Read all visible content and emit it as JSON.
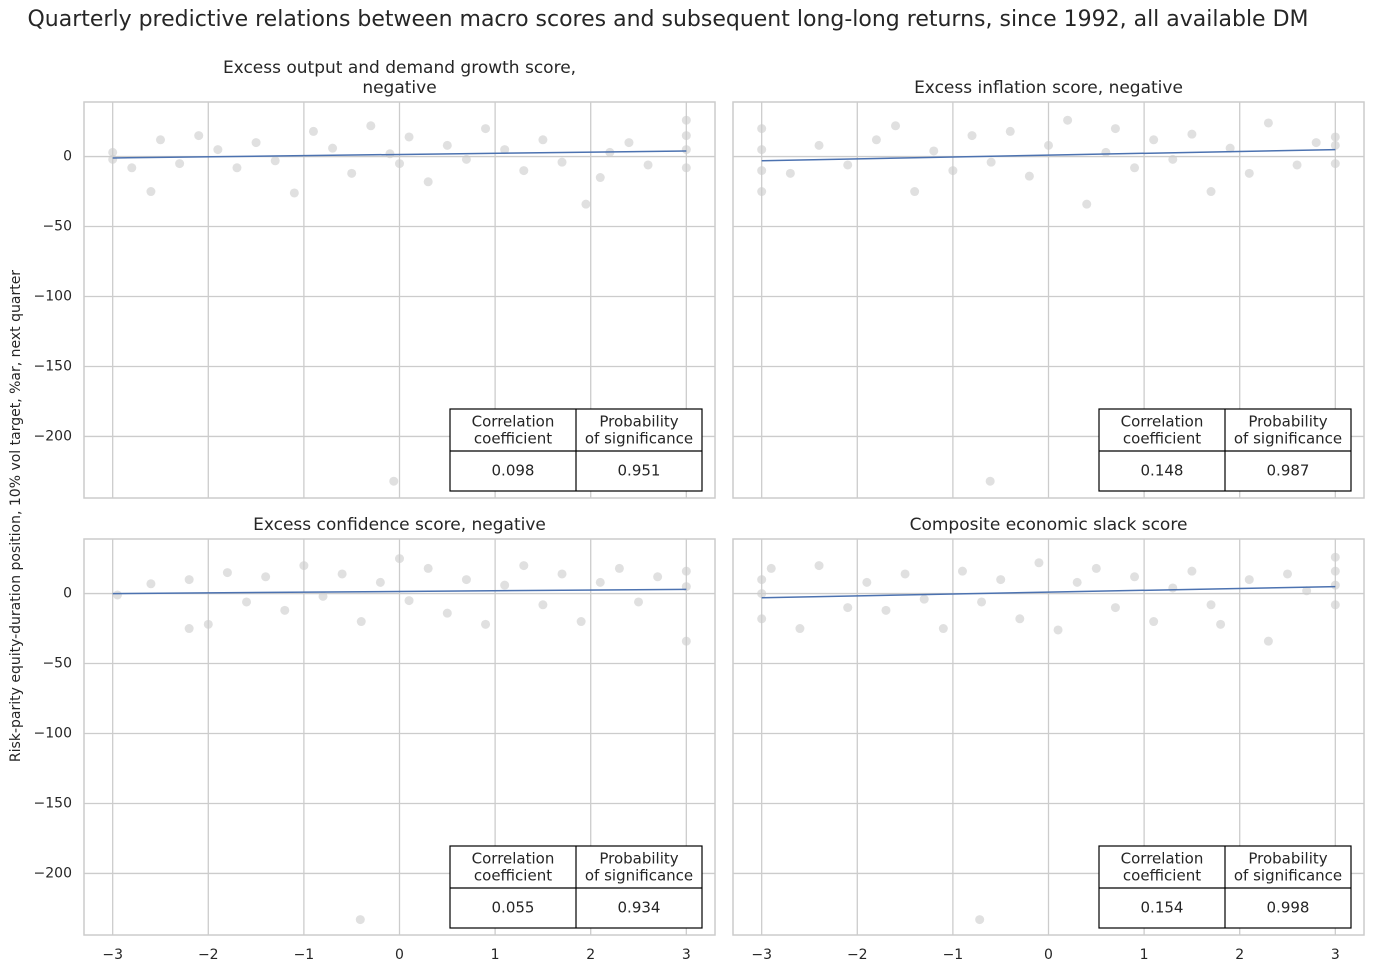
{
  "title": "Quarterly predictive relations between macro scores and subsequent long-long returns, since 1992, all available DM",
  "chart_data": [
    {
      "type": "scatter",
      "title": [
        "Excess output and demand growth score,",
        "negative"
      ],
      "ylabel": "Risk-parity equity-duration position, 10% vol target, %ar, next quarter",
      "x": [
        -3,
        -3,
        -2.8,
        -2.6,
        -2.5,
        -2.3,
        -2.1,
        -1.9,
        -1.7,
        -1.5,
        -1.3,
        -1.1,
        -0.9,
        -0.7,
        -0.5,
        -0.3,
        -0.1,
        0,
        0.1,
        0.3,
        0.5,
        0.7,
        0.9,
        1.1,
        1.3,
        1.5,
        1.7,
        1.95,
        2.1,
        2.2,
        2.4,
        2.6,
        3,
        3,
        3,
        3,
        -0.06
      ],
      "values": [
        -2,
        3,
        -8,
        -25,
        12,
        -5,
        15,
        5,
        -8,
        10,
        -3,
        -26,
        18,
        6,
        -12,
        22,
        2,
        -5,
        14,
        -18,
        8,
        -2,
        20,
        5,
        -10,
        12,
        -4,
        -34,
        -15,
        3,
        10,
        -6,
        -8,
        5,
        15,
        26,
        -232
      ],
      "color": "#cccccc",
      "fit": {
        "x": [
          -3,
          3
        ],
        "values": [
          -1,
          4
        ],
        "color": "#4c72b0"
      },
      "xlim": [
        -3.3,
        3.3
      ],
      "ylim": [
        -244,
        39
      ],
      "xticks": [
        -3,
        -2,
        -1,
        0,
        1,
        2,
        3
      ],
      "yticks": [
        {
          "value": -200,
          "label": "−200"
        },
        {
          "value": -150,
          "label": "−150"
        },
        {
          "value": -100,
          "label": "−100"
        },
        {
          "value": -50,
          "label": "−50"
        },
        0
      ],
      "table": {
        "header": [
          [
            "Correlation",
            "coefficient"
          ],
          [
            "Probability",
            "of significance"
          ]
        ],
        "row": [
          0.098,
          0.951
        ]
      }
    },
    {
      "type": "scatter",
      "title": [
        "Excess inflation score, negative"
      ],
      "x": [
        -3,
        -3,
        -3,
        -3,
        -2.7,
        -2.4,
        -2.1,
        -1.8,
        -1.6,
        -1.4,
        -1.2,
        -1,
        -0.8,
        -0.6,
        -0.4,
        -0.2,
        0,
        0.2,
        0.4,
        0.6,
        0.7,
        0.9,
        1.1,
        1.3,
        1.5,
        1.7,
        1.9,
        2.1,
        2.3,
        2.6,
        2.8,
        3,
        3,
        3,
        -0.61
      ],
      "values": [
        -25,
        -10,
        5,
        20,
        -12,
        8,
        -6,
        12,
        22,
        -25,
        4,
        -10,
        15,
        -4,
        18,
        -14,
        8,
        26,
        -34,
        3,
        20,
        -8,
        12,
        -2,
        16,
        -25,
        6,
        -12,
        24,
        -6,
        10,
        -5,
        8,
        14,
        -232
      ],
      "color": "#cccccc",
      "fit": {
        "x": [
          -3,
          3
        ],
        "values": [
          -3,
          5
        ],
        "color": "#4c72b0"
      },
      "xlim": [
        -3.3,
        3.3
      ],
      "ylim": [
        -244,
        39
      ],
      "xticks": [
        -3,
        -2,
        -1,
        0,
        1,
        2,
        3
      ],
      "yticks": [
        -200,
        -150,
        -100,
        -50,
        0
      ],
      "table": {
        "header": [
          [
            "Correlation",
            "coefficient"
          ],
          [
            "Probability",
            "of significance"
          ]
        ],
        "row": [
          0.148,
          0.987
        ]
      }
    },
    {
      "type": "scatter",
      "title": [
        "Excess confidence score, negative"
      ],
      "x": [
        -2.95,
        -2.6,
        -2.2,
        -2.2,
        -2,
        -1.8,
        -1.6,
        -1.4,
        -1.2,
        -1,
        -0.8,
        -0.6,
        -0.4,
        -0.2,
        0,
        0.1,
        0.3,
        0.5,
        0.7,
        0.9,
        1.1,
        1.3,
        1.5,
        1.7,
        1.9,
        2.1,
        2.3,
        2.5,
        2.7,
        3,
        3,
        3,
        -0.41
      ],
      "values": [
        -1,
        7,
        -25,
        10,
        -22,
        15,
        -6,
        12,
        -12,
        20,
        -2,
        14,
        -20,
        8,
        25,
        -5,
        18,
        -14,
        10,
        -22,
        6,
        20,
        -8,
        14,
        -20,
        8,
        18,
        -6,
        12,
        -34,
        5,
        16,
        -233
      ],
      "color": "#cccccc",
      "fit": {
        "x": [
          -3,
          3
        ],
        "values": [
          0,
          3
        ],
        "color": "#4c72b0"
      },
      "xlim": [
        -3.3,
        3.3
      ],
      "ylim": [
        -244,
        39
      ],
      "xticks": [
        {
          "value": -3,
          "label": "−3"
        },
        {
          "value": -2,
          "label": "−2"
        },
        {
          "value": -1,
          "label": "−1"
        },
        0,
        1,
        2,
        3
      ],
      "yticks": [
        {
          "value": -200,
          "label": "−200"
        },
        {
          "value": -150,
          "label": "−150"
        },
        {
          "value": -100,
          "label": "−100"
        },
        {
          "value": -50,
          "label": "−50"
        },
        0
      ],
      "table": {
        "header": [
          [
            "Correlation",
            "coefficient"
          ],
          [
            "Probability",
            "of significance"
          ]
        ],
        "row": [
          0.055,
          0.934
        ]
      }
    },
    {
      "type": "scatter",
      "title": [
        "Composite economic slack score"
      ],
      "x": [
        -3,
        -3,
        -3,
        -2.9,
        -2.6,
        -2.4,
        -2.1,
        -1.9,
        -1.7,
        -1.5,
        -1.3,
        -1.1,
        -0.9,
        -0.7,
        -0.5,
        -0.3,
        -0.1,
        0.1,
        0.3,
        0.5,
        0.7,
        0.9,
        1.1,
        1.3,
        1.5,
        1.7,
        1.8,
        2.1,
        2.3,
        2.5,
        2.7,
        3,
        3,
        3,
        3,
        -0.72
      ],
      "values": [
        -18,
        0,
        10,
        18,
        -25,
        20,
        -10,
        8,
        -12,
        14,
        -4,
        -25,
        16,
        -6,
        10,
        -18,
        22,
        -26,
        8,
        18,
        -10,
        12,
        -20,
        4,
        16,
        -8,
        -22,
        10,
        -34,
        14,
        2,
        -8,
        6,
        16,
        26,
        -233
      ],
      "color": "#cccccc",
      "fit": {
        "x": [
          -3,
          3
        ],
        "values": [
          -3,
          5
        ],
        "color": "#4c72b0"
      },
      "xlim": [
        -3.3,
        3.3
      ],
      "ylim": [
        -244,
        39
      ],
      "xticks": [
        {
          "value": -3,
          "label": "−3"
        },
        {
          "value": -2,
          "label": "−2"
        },
        {
          "value": -1,
          "label": "−1"
        },
        0,
        1,
        2,
        3
      ],
      "yticks": [
        -200,
        -150,
        -100,
        -50,
        0
      ],
      "table": {
        "header": [
          [
            "Correlation",
            "coefficient"
          ],
          [
            "Probability",
            "of significance"
          ]
        ],
        "row": [
          0.154,
          0.998
        ]
      }
    }
  ]
}
